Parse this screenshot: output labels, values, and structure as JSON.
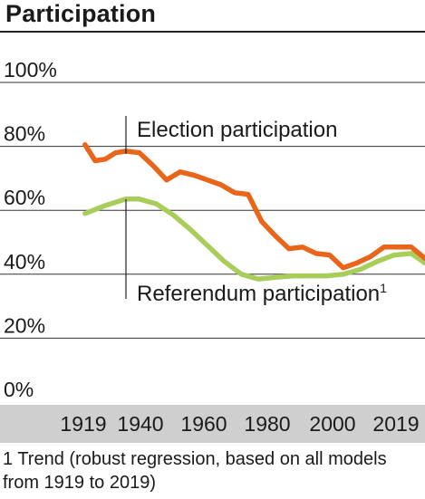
{
  "title": "Participation",
  "footnote": "1 Trend (robust regression, based on all models from 1919 to 2019)",
  "colors": {
    "election": "#e8651a",
    "referendum": "#a9cd5b",
    "axis_band": "#cfcfcf",
    "grid": "#333333"
  },
  "chart_data": {
    "type": "line",
    "title": "Participation",
    "xlabel": "",
    "ylabel": "",
    "xlim": [
      1913,
      2025
    ],
    "ylim": [
      0,
      100
    ],
    "x_ticks": [
      "1919",
      "1940",
      "1960",
      "1980",
      "2000",
      "2019"
    ],
    "y_ticks": [
      "100%",
      "80%",
      "60%",
      "40%",
      "20%",
      "0%"
    ],
    "grid": true,
    "series": [
      {
        "name": "Election participation",
        "x": [
          1919,
          1922,
          1925,
          1928,
          1931,
          1935,
          1939,
          1943,
          1947,
          1951,
          1955,
          1959,
          1963,
          1967,
          1971,
          1975,
          1979,
          1983,
          1987,
          1991,
          1995,
          1999,
          2003,
          2007,
          2011,
          2015,
          2019
        ],
        "y": [
          80.5,
          75.5,
          76,
          78,
          78.5,
          78,
          74,
          69.5,
          72,
          71,
          69.5,
          68,
          65.5,
          65,
          56.5,
          52,
          48,
          48.5,
          46.5,
          46,
          42,
          43.5,
          45.5,
          48.5,
          48.5,
          48.5,
          45
        ]
      },
      {
        "name": "Referendum participation",
        "x": [
          1919,
          1925,
          1931,
          1935,
          1940,
          1945,
          1950,
          1955,
          1960,
          1965,
          1970,
          1975,
          1980,
          1985,
          1990,
          1995,
          2000,
          2005,
          2010,
          2015,
          2019
        ],
        "y": [
          59,
          61.5,
          63.5,
          63.5,
          62,
          58.5,
          54,
          49,
          44,
          40,
          38.5,
          39,
          39.5,
          39.5,
          39.5,
          40,
          41.5,
          44,
          46,
          46.5,
          43.5
        ]
      }
    ],
    "annotations": [
      {
        "text": "Election participation",
        "x": 1934
      },
      {
        "text": "Referendum participation",
        "footnote_mark": "1",
        "x": 1934
      }
    ]
  }
}
